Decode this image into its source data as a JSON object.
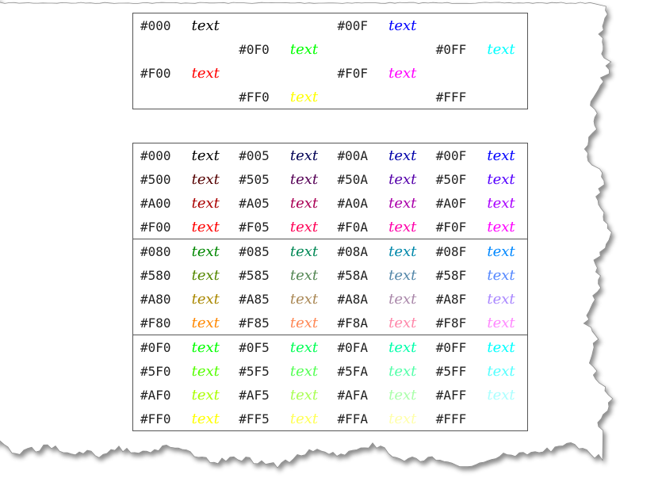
{
  "sample_word": "text",
  "table1": [
    [
      [
        "#000",
        "#000000"
      ],
      null,
      [
        "#00F",
        "#0000FF"
      ],
      null
    ],
    [
      null,
      [
        "#0F0",
        "#00FF00"
      ],
      null,
      [
        "#0FF",
        "#00FFFF"
      ]
    ],
    [
      [
        "#F00",
        "#FF0000"
      ],
      null,
      [
        "#F0F",
        "#FF00FF"
      ],
      null
    ],
    [
      null,
      [
        "#FF0",
        "#FFFF00"
      ],
      null,
      [
        "#FFF",
        "#FFFFFF"
      ]
    ]
  ],
  "table2": [
    [
      [
        [
          "#000",
          "#000000"
        ],
        [
          "#005",
          "#000055"
        ],
        [
          "#00A",
          "#0000AA"
        ],
        [
          "#00F",
          "#0000FF"
        ]
      ],
      [
        [
          "#500",
          "#550000"
        ],
        [
          "#505",
          "#550055"
        ],
        [
          "#50A",
          "#5500AA"
        ],
        [
          "#50F",
          "#5500FF"
        ]
      ],
      [
        [
          "#A00",
          "#AA0000"
        ],
        [
          "#A05",
          "#AA0055"
        ],
        [
          "#A0A",
          "#AA00AA"
        ],
        [
          "#A0F",
          "#AA00FF"
        ]
      ],
      [
        [
          "#F00",
          "#FF0000"
        ],
        [
          "#F05",
          "#FF0055"
        ],
        [
          "#F0A",
          "#FF00AA"
        ],
        [
          "#F0F",
          "#FF00FF"
        ]
      ]
    ],
    [
      [
        [
          "#080",
          "#008800"
        ],
        [
          "#085",
          "#008855"
        ],
        [
          "#08A",
          "#0088AA"
        ],
        [
          "#08F",
          "#0088FF"
        ]
      ],
      [
        [
          "#580",
          "#558800"
        ],
        [
          "#585",
          "#558855"
        ],
        [
          "#58A",
          "#5588AA"
        ],
        [
          "#58F",
          "#5588FF"
        ]
      ],
      [
        [
          "#A80",
          "#AA8800"
        ],
        [
          "#A85",
          "#AA8855"
        ],
        [
          "#A8A",
          "#AA88AA"
        ],
        [
          "#A8F",
          "#AA88FF"
        ]
      ],
      [
        [
          "#F80",
          "#FF8800"
        ],
        [
          "#F85",
          "#FF8855"
        ],
        [
          "#F8A",
          "#FF88AA"
        ],
        [
          "#F8F",
          "#FF88FF"
        ]
      ]
    ],
    [
      [
        [
          "#0F0",
          "#00FF00"
        ],
        [
          "#0F5",
          "#00FF55"
        ],
        [
          "#0FA",
          "#00FFAA"
        ],
        [
          "#0FF",
          "#00FFFF"
        ]
      ],
      [
        [
          "#5F0",
          "#55FF00"
        ],
        [
          "#5F5",
          "#55FF55"
        ],
        [
          "#5FA",
          "#55FFAA"
        ],
        [
          "#5FF",
          "#55FFFF"
        ]
      ],
      [
        [
          "#AF0",
          "#AAFF00"
        ],
        [
          "#AF5",
          "#AAFF55"
        ],
        [
          "#AFA",
          "#AAFFAA"
        ],
        [
          "#AFF",
          "#AAFFFF"
        ]
      ],
      [
        [
          "#FF0",
          "#FFFF00"
        ],
        [
          "#FF5",
          "#FFFF55"
        ],
        [
          "#FFA",
          "#FFFFAA"
        ],
        [
          "#FFF",
          "#FFFFFF"
        ]
      ]
    ]
  ]
}
